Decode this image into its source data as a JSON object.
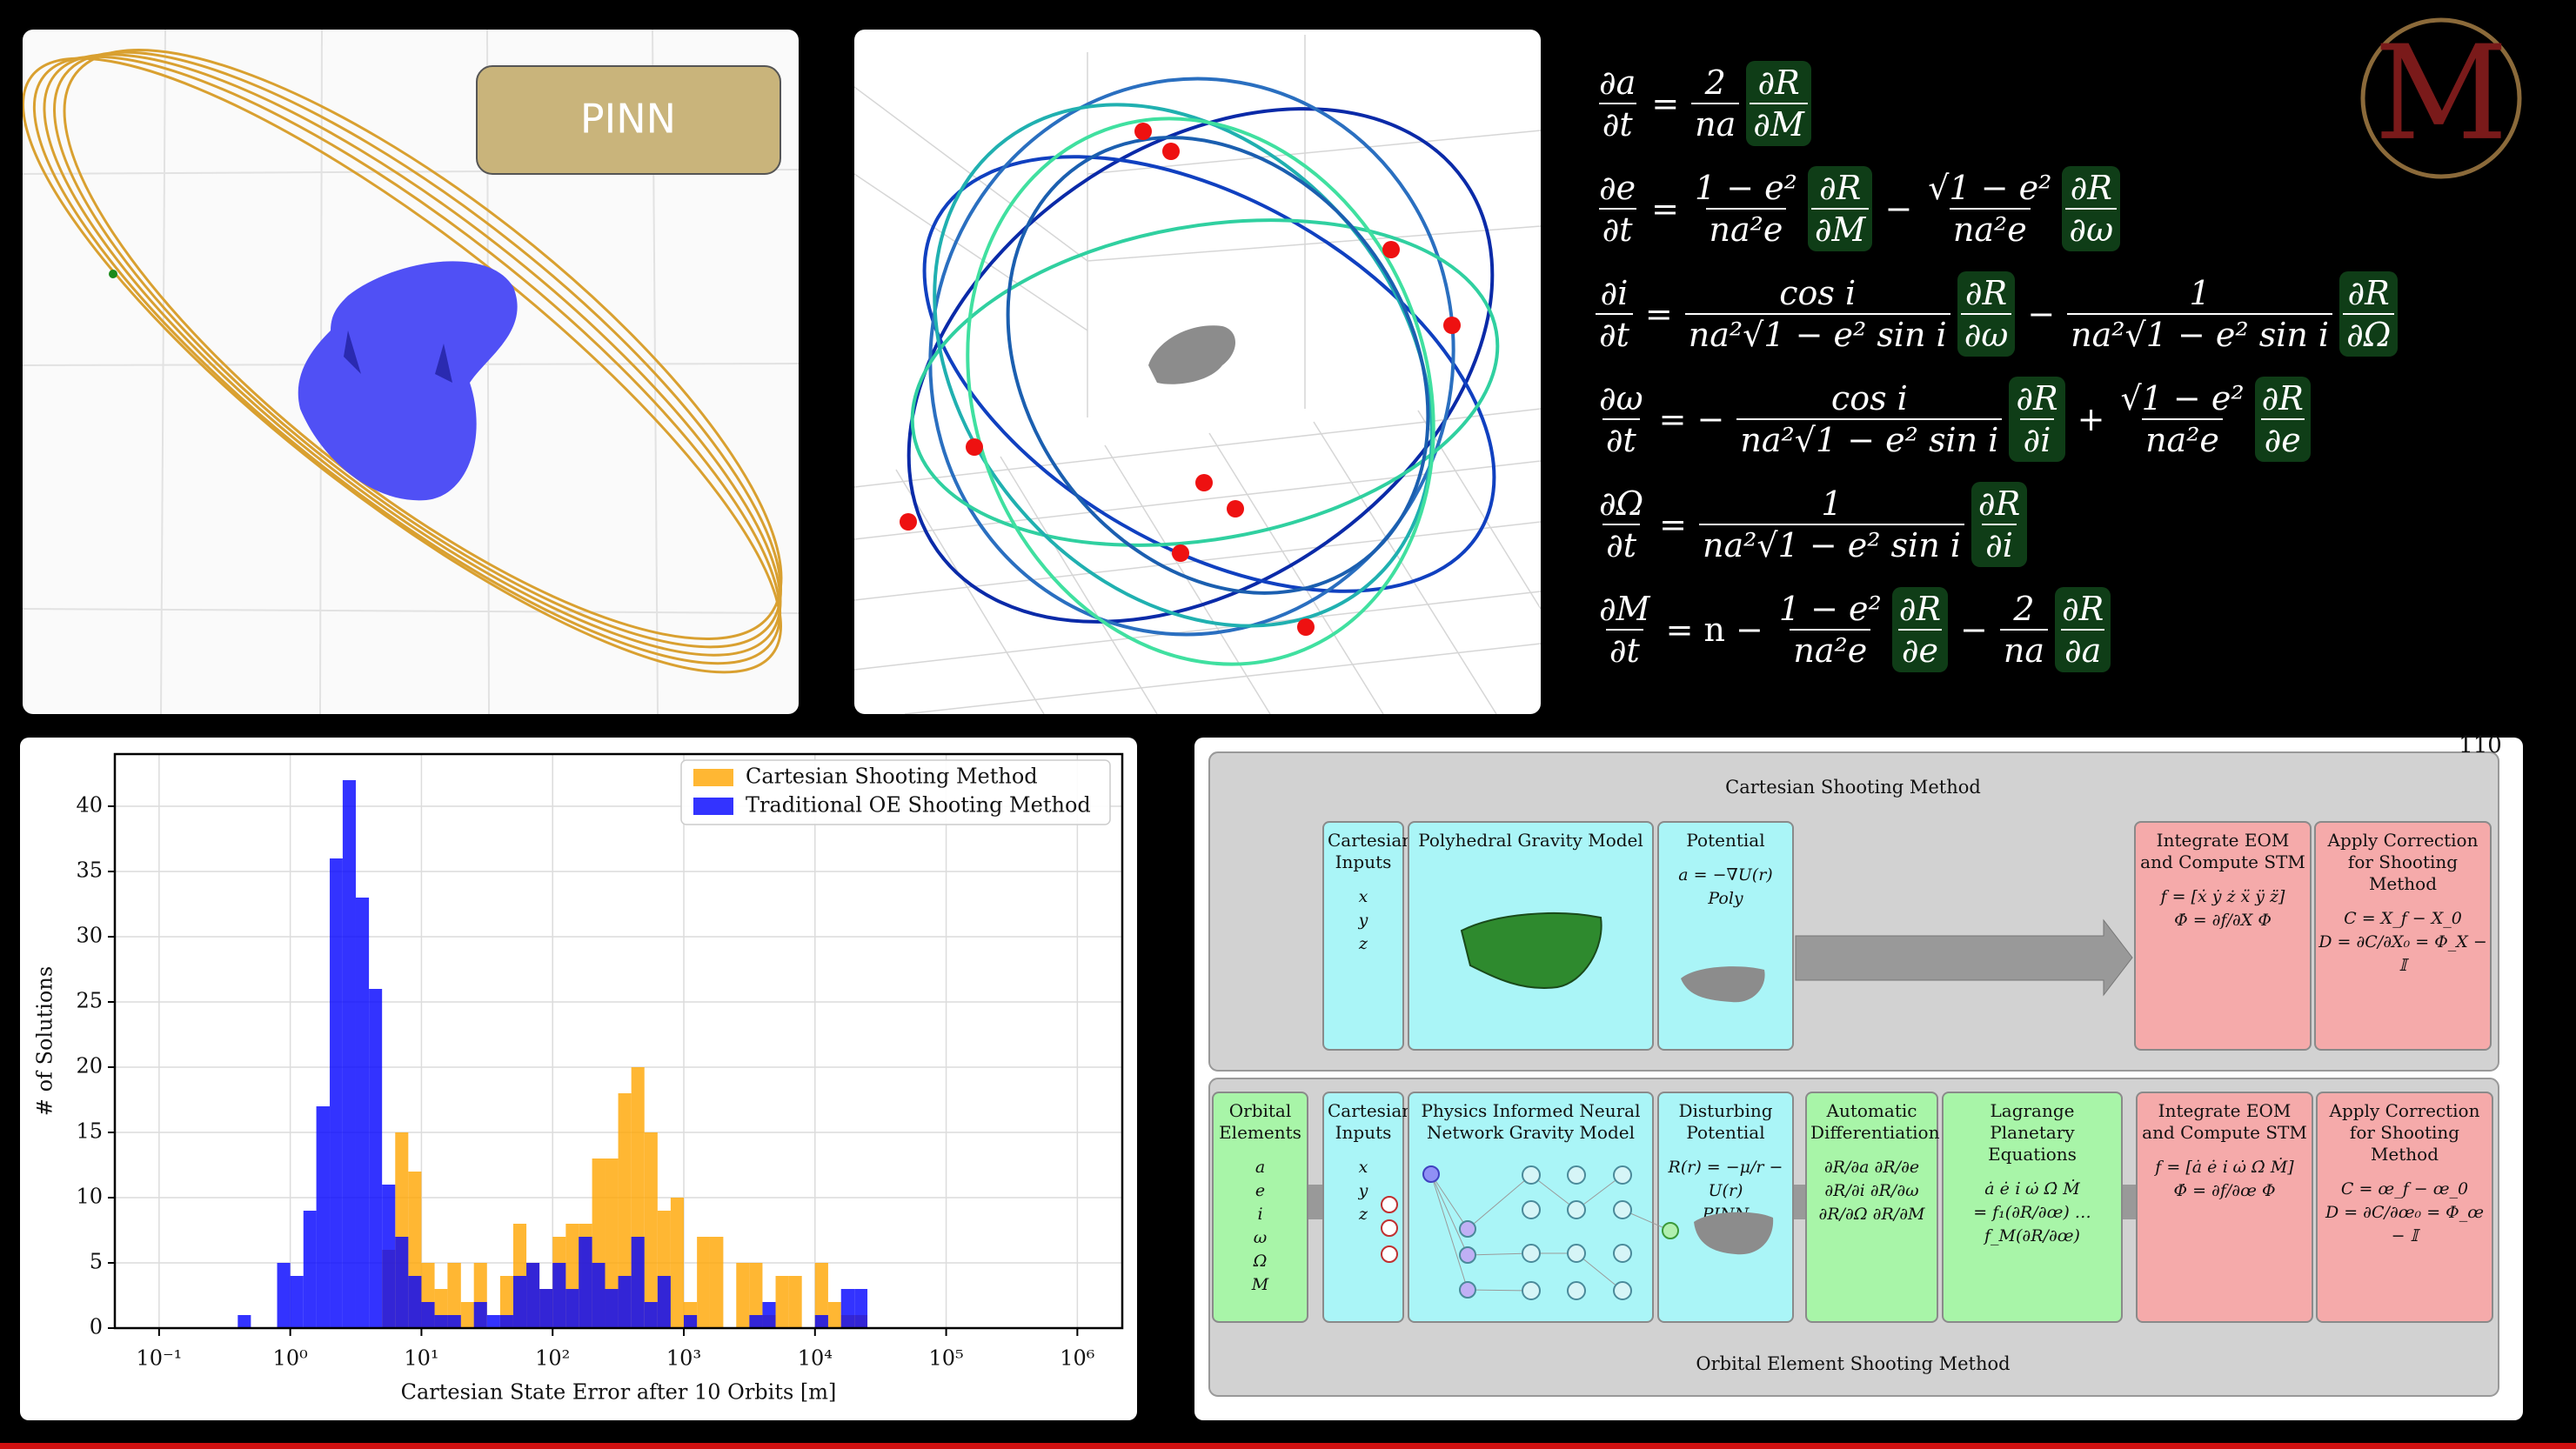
{
  "pinn_label": "PINN",
  "logo": "M",
  "equations": [
    {
      "lhs": {
        "num": "∂a",
        "den": "∂t"
      },
      "rhs": [
        {
          "t": "="
        },
        {
          "num": "2",
          "den": "na"
        },
        {
          "num": "∂R",
          "den": "∂M",
          "hl": true
        }
      ]
    },
    {
      "lhs": {
        "num": "∂e",
        "den": "∂t"
      },
      "rhs": [
        {
          "t": "="
        },
        {
          "num": "1 − e²",
          "den": "na²e"
        },
        {
          "num": "∂R",
          "den": "∂M",
          "hl": true
        },
        {
          "t": "−"
        },
        {
          "num": "√1 − e²",
          "den": "na²e"
        },
        {
          "num": "∂R",
          "den": "∂ω",
          "hl": true
        }
      ]
    },
    {
      "lhs": {
        "num": "∂i",
        "den": "∂t"
      },
      "rhs": [
        {
          "t": "="
        },
        {
          "num": "cos i",
          "den": "na²√1 − e² sin i"
        },
        {
          "num": "∂R",
          "den": "∂ω",
          "hl": true
        },
        {
          "t": "−"
        },
        {
          "num": "1",
          "den": "na²√1 − e² sin i"
        },
        {
          "num": "∂R",
          "den": "∂Ω",
          "hl": true
        }
      ]
    },
    {
      "lhs": {
        "num": "∂ω",
        "den": "∂t"
      },
      "rhs": [
        {
          "t": "= −"
        },
        {
          "num": "cos i",
          "den": "na²√1 − e² sin i"
        },
        {
          "num": "∂R",
          "den": "∂i",
          "hl": true
        },
        {
          "t": "+"
        },
        {
          "num": "√1 − e²",
          "den": "na²e"
        },
        {
          "num": "∂R",
          "den": "∂e",
          "hl": true
        }
      ]
    },
    {
      "lhs": {
        "num": "∂Ω",
        "den": "∂t"
      },
      "rhs": [
        {
          "t": "="
        },
        {
          "num": "1",
          "den": "na²√1 − e² sin i"
        },
        {
          "num": "∂R",
          "den": "∂i",
          "hl": true
        }
      ]
    },
    {
      "lhs": {
        "num": "∂M",
        "den": "∂t"
      },
      "rhs": [
        {
          "t": "= n −"
        },
        {
          "num": "1 − e²",
          "den": "na²e"
        },
        {
          "num": "∂R",
          "den": "∂e",
          "hl": true
        },
        {
          "t": "−"
        },
        {
          "num": "2",
          "den": "na"
        },
        {
          "num": "∂R",
          "den": "∂a",
          "hl": true
        }
      ]
    }
  ],
  "chart_data": {
    "type": "histogram",
    "xlabel": "Cartesian State Error after 10 Orbits [m]",
    "ylabel": "# of Solutions",
    "xscale": "log",
    "bins": [
      0.398,
      0.501,
      0.631,
      0.794,
      1,
      1.26,
      1.58,
      2,
      2.51,
      3.16,
      3.98,
      5.01,
      6.31,
      7.94,
      10,
      12.6,
      15.8,
      20,
      25.1,
      31.6,
      39.8,
      50.1,
      63.1,
      79.4,
      100,
      126,
      158,
      200,
      251,
      316,
      398,
      501,
      631,
      794,
      1000,
      1260,
      1580,
      2000,
      2510,
      3160,
      3980,
      5010,
      6310,
      7940,
      10000,
      12600,
      15800,
      20000,
      25100
    ],
    "series": [
      {
        "name": "Cartesian Shooting Method",
        "color": "#ffa500",
        "values": [
          0,
          0,
          0,
          0,
          0,
          0,
          0,
          0,
          0,
          0,
          0,
          6,
          15,
          12,
          5,
          3,
          5,
          2,
          5,
          0,
          4,
          8,
          5,
          3,
          7,
          8,
          8,
          13,
          13,
          18,
          20,
          15,
          9,
          10,
          2,
          7,
          7,
          0,
          5,
          5,
          1,
          4,
          4,
          0,
          5,
          2,
          1,
          1
        ]
      },
      {
        "name": "Traditional OE Shooting Method",
        "color": "#0000ff",
        "values": [
          1,
          0,
          0,
          5,
          4,
          9,
          17,
          36,
          42,
          33,
          26,
          11,
          7,
          4,
          2,
          1,
          1,
          0,
          2,
          1,
          1,
          4,
          5,
          3,
          5,
          3,
          7,
          5,
          3,
          4,
          7,
          2,
          4,
          0,
          1,
          0,
          0,
          0,
          0,
          1,
          2,
          0,
          0,
          0,
          1,
          0,
          3,
          3
        ]
      }
    ],
    "xlim": [
      0.046,
      2200000
    ],
    "ylim": [
      0,
      44
    ],
    "xticks": [
      {
        "value": 0.1,
        "label": "10⁻¹"
      },
      {
        "value": 1,
        "label": "10⁰"
      },
      {
        "value": 10,
        "label": "10¹"
      },
      {
        "value": 100,
        "label": "10²"
      },
      {
        "value": 1000,
        "label": "10³"
      },
      {
        "value": 10000,
        "label": "10⁴"
      },
      {
        "value": 100000,
        "label": "10⁵"
      },
      {
        "value": 1000000,
        "label": "10⁶"
      }
    ],
    "yticks": [
      0,
      5,
      10,
      15,
      20,
      25,
      30,
      35,
      40
    ],
    "grid": true,
    "legend": "upper right"
  },
  "diagram": {
    "page_number": "110",
    "top": {
      "label": "Cartesian Shooting Method",
      "boxes": [
        {
          "title": "Cartesian Inputs",
          "lines": [
            "x",
            "y",
            "z"
          ]
        },
        {
          "title": "Polyhedral Gravity Model"
        },
        {
          "title": "Potential",
          "lines": [
            "a = −∇U(r)",
            "Poly"
          ]
        },
        {
          "title": "Integrate EOM and Compute STM",
          "lines": [
            "f = [ẋ ẏ ż ẍ ÿ z̈]",
            "Φ̇ = ∂f/∂X Φ"
          ]
        },
        {
          "title": "Apply Correction for Shooting Method",
          "lines": [
            "C = X_f − X_0",
            "D = ∂C/∂X₀ = Φ_X − 𝕀"
          ]
        }
      ]
    },
    "bottom": {
      "label": "Orbital Element Shooting Method",
      "boxes": [
        {
          "title": "Orbital Elements",
          "lines": [
            "a",
            "e",
            "i",
            "ω",
            "Ω",
            "M"
          ]
        },
        {
          "title": "Cartesian Inputs",
          "lines": [
            "x",
            "y",
            "z"
          ]
        },
        {
          "title": "Physics Informed Neural Network Gravity Model"
        },
        {
          "title": "Disturbing Potential",
          "lines": [
            "R(r) = −μ/r − U(r)",
            "PINN"
          ]
        },
        {
          "title": "Automatic Differentiation",
          "lines": [
            "∂R/∂a   ∂R/∂e",
            "∂R/∂i   ∂R/∂ω",
            "∂R/∂Ω   ∂R/∂M"
          ]
        },
        {
          "title": "Lagrange Planetary Equations",
          "lines": [
            "ȧ ė i̇ ω̇ Ω̇ Ṁ",
            "= f₁(∂R/∂œ) … f_M(∂R/∂œ)"
          ]
        },
        {
          "title": "Integrate EOM and Compute STM",
          "lines": [
            "f = [ȧ ė i̇ ω̇ Ω̇ Ṁ]",
            "Φ̇ = ∂f/∂œ Φ"
          ]
        },
        {
          "title": "Apply Correction for Shooting Method",
          "lines": [
            "C = œ_f − œ_0",
            "D = ∂C/∂œ₀ = Φ_œ − 𝕀"
          ]
        }
      ]
    }
  }
}
